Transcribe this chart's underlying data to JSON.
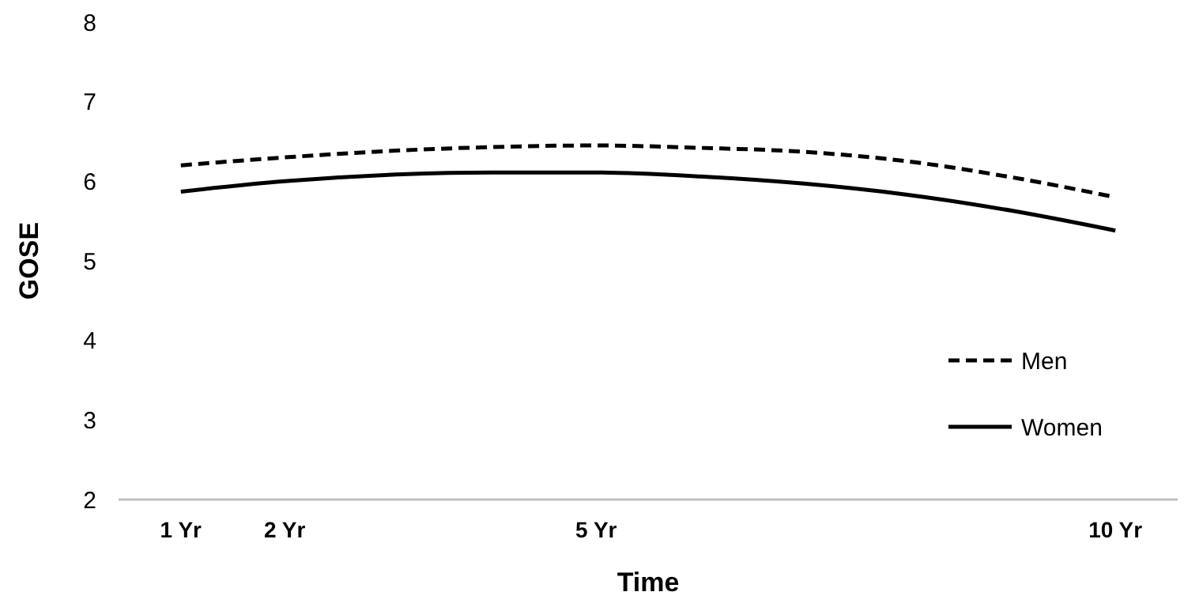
{
  "chart_data": {
    "type": "line",
    "xlabel": "Time",
    "ylabel": "GOSE",
    "x": [
      1,
      2,
      3,
      4,
      5,
      6,
      7,
      8,
      9,
      10
    ],
    "series": [
      {
        "name": "Men",
        "color": "#000000",
        "line_style": "dashed",
        "values": [
          6.2,
          6.3,
          6.38,
          6.43,
          6.45,
          6.42,
          6.37,
          6.25,
          6.05,
          5.8
        ]
      },
      {
        "name": "Women",
        "color": "#000000",
        "line_style": "solid",
        "values": [
          5.87,
          6.0,
          6.08,
          6.11,
          6.11,
          6.06,
          5.97,
          5.83,
          5.63,
          5.38
        ]
      }
    ],
    "xlim": [
      0.4,
      10.6
    ],
    "xticks": [
      {
        "value": 1,
        "label": "1 Yr"
      },
      {
        "value": 2,
        "label": "2 Yr"
      },
      {
        "value": 5,
        "label": "5 Yr"
      },
      {
        "value": 10,
        "label": "10 Yr"
      }
    ],
    "ylim": [
      2,
      8
    ],
    "yticks": [
      2,
      3,
      4,
      5,
      6,
      7,
      8
    ],
    "grid": false,
    "legend": "right",
    "marker": "none"
  }
}
